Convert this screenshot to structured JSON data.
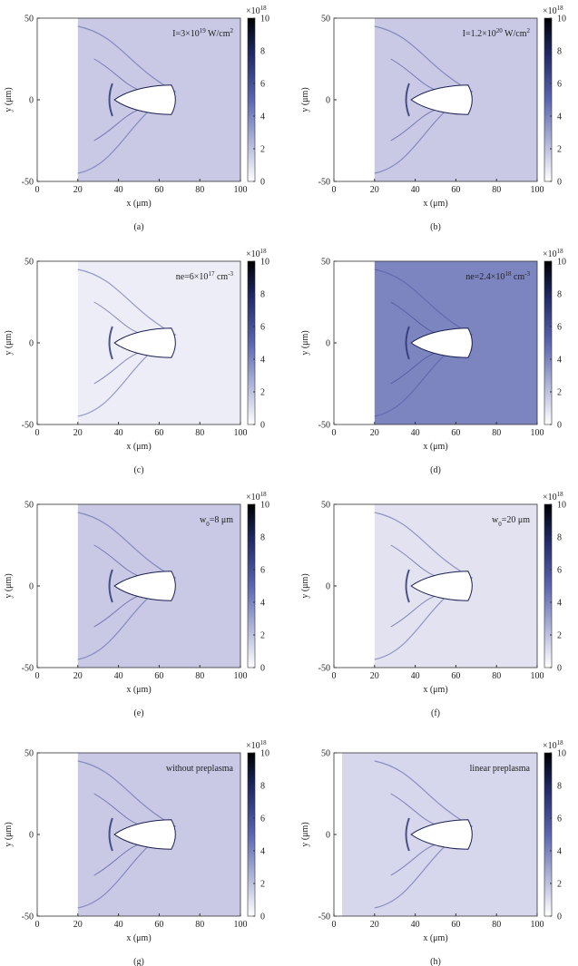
{
  "chart_data": [
    {
      "type": "heatmap",
      "annotation": [
        {
          "t": "I=3×10"
        },
        {
          "t": "19",
          "pos": "sup"
        },
        {
          "t": " W/cm"
        },
        {
          "t": "2",
          "pos": "sup"
        }
      ],
      "caption": "(a)",
      "xlabel": "x (μm)",
      "ylabel": "y (μm)",
      "xlim": [
        0,
        100
      ],
      "xticks": [
        0,
        20,
        40,
        60,
        80,
        100
      ],
      "ylim": [
        -50,
        50
      ],
      "yticks": [
        -50,
        0,
        50
      ],
      "colorbar": {
        "label": [
          {
            "t": "×10"
          },
          {
            "t": "18",
            "pos": "sup"
          }
        ],
        "lim": [
          0,
          10
        ],
        "ticks": [
          0,
          2,
          4,
          6,
          8,
          10
        ]
      }
    },
    {
      "type": "heatmap",
      "annotation": [
        {
          "t": "I=1.2×10"
        },
        {
          "t": "20",
          "pos": "sup"
        },
        {
          "t": " W/cm"
        },
        {
          "t": "2",
          "pos": "sup"
        }
      ],
      "caption": "(b)",
      "xlabel": "x (μm)",
      "ylabel": "y (μm)",
      "xlim": [
        0,
        100
      ],
      "xticks": [
        0,
        20,
        40,
        60,
        80,
        100
      ],
      "ylim": [
        -50,
        50
      ],
      "yticks": [
        -50,
        0,
        50
      ],
      "colorbar": {
        "label": [
          {
            "t": "×10"
          },
          {
            "t": "18",
            "pos": "sup"
          }
        ],
        "lim": [
          0,
          10
        ],
        "ticks": [
          0,
          2,
          4,
          6,
          8,
          10
        ]
      }
    },
    {
      "type": "heatmap",
      "annotation": [
        {
          "t": "ne=6×10"
        },
        {
          "t": "17",
          "pos": "sup"
        },
        {
          "t": " cm"
        },
        {
          "t": "-3",
          "pos": "sup"
        }
      ],
      "caption": "(c)",
      "xlabel": "x (μm)",
      "ylabel": "y (μm)",
      "xlim": [
        0,
        100
      ],
      "xticks": [
        0,
        20,
        40,
        60,
        80,
        100
      ],
      "ylim": [
        -50,
        50
      ],
      "yticks": [
        -50,
        0,
        50
      ],
      "colorbar": {
        "label": [
          {
            "t": "×10"
          },
          {
            "t": "18",
            "pos": "sup"
          }
        ],
        "lim": [
          0,
          10
        ],
        "ticks": [
          0,
          2,
          4,
          6,
          8,
          10
        ]
      }
    },
    {
      "type": "heatmap",
      "annotation": [
        {
          "t": "ne=2.4×10"
        },
        {
          "t": "18",
          "pos": "sup"
        },
        {
          "t": " cm"
        },
        {
          "t": "-3",
          "pos": "sup"
        }
      ],
      "caption": "(d)",
      "xlabel": "x (μm)",
      "ylabel": "y (μm)",
      "xlim": [
        0,
        100
      ],
      "xticks": [
        0,
        20,
        40,
        60,
        80,
        100
      ],
      "ylim": [
        -50,
        50
      ],
      "yticks": [
        -50,
        0,
        50
      ],
      "colorbar": {
        "label": [
          {
            "t": "×10"
          },
          {
            "t": "18",
            "pos": "sup"
          }
        ],
        "lim": [
          0,
          10
        ],
        "ticks": [
          0,
          2,
          4,
          6,
          8,
          10
        ]
      }
    },
    {
      "type": "heatmap",
      "annotation": [
        {
          "t": "w"
        },
        {
          "t": "0",
          "pos": "sub"
        },
        {
          "t": "=8 μm"
        }
      ],
      "caption": "(e)",
      "xlabel": "x (μm)",
      "ylabel": "y (μm)",
      "xlim": [
        0,
        100
      ],
      "xticks": [
        0,
        20,
        40,
        60,
        80,
        100
      ],
      "ylim": [
        -50,
        50
      ],
      "yticks": [
        -50,
        0,
        50
      ],
      "colorbar": {
        "label": [
          {
            "t": "×10"
          },
          {
            "t": "18",
            "pos": "sup"
          }
        ],
        "lim": [
          0,
          10
        ],
        "ticks": [
          0,
          2,
          4,
          6,
          8,
          10
        ]
      }
    },
    {
      "type": "heatmap",
      "annotation": [
        {
          "t": "w"
        },
        {
          "t": "0",
          "pos": "sub"
        },
        {
          "t": "=20 μm"
        }
      ],
      "caption": "(f)",
      "xlabel": "x (μm)",
      "ylabel": "y (μm)",
      "xlim": [
        0,
        100
      ],
      "xticks": [
        0,
        20,
        40,
        60,
        80,
        100
      ],
      "ylim": [
        -50,
        50
      ],
      "yticks": [
        -50,
        0,
        50
      ],
      "colorbar": {
        "label": [
          {
            "t": "×10"
          },
          {
            "t": "18",
            "pos": "sup"
          }
        ],
        "lim": [
          0,
          10
        ],
        "ticks": [
          0,
          2,
          4,
          6,
          8,
          10
        ]
      }
    },
    {
      "type": "heatmap",
      "annotation": [
        {
          "t": "without preplasma"
        }
      ],
      "caption": "(g)",
      "xlabel": "x (μm)",
      "ylabel": "y (μm)",
      "xlim": [
        0,
        100
      ],
      "xticks": [
        0,
        20,
        40,
        60,
        80,
        100
      ],
      "ylim": [
        -50,
        50
      ],
      "yticks": [
        -50,
        0,
        50
      ],
      "colorbar": {
        "label": [
          {
            "t": "×10"
          },
          {
            "t": "18",
            "pos": "sup"
          }
        ],
        "lim": [
          0,
          10
        ],
        "ticks": [
          0,
          2,
          4,
          6,
          8,
          10
        ]
      }
    },
    {
      "type": "heatmap",
      "annotation": [
        {
          "t": "linear preplasma"
        }
      ],
      "caption": "(h)",
      "xlabel": "x (μm)",
      "ylabel": "y (μm)",
      "xlim": [
        0,
        100
      ],
      "xticks": [
        0,
        20,
        40,
        60,
        80,
        100
      ],
      "ylim": [
        -50,
        50
      ],
      "yticks": [
        -50,
        0,
        50
      ],
      "colorbar": {
        "label": [
          {
            "t": "×10"
          },
          {
            "t": "18",
            "pos": "sup"
          }
        ],
        "lim": [
          0,
          10
        ],
        "ticks": [
          0,
          2,
          4,
          6,
          8,
          10
        ]
      }
    }
  ]
}
